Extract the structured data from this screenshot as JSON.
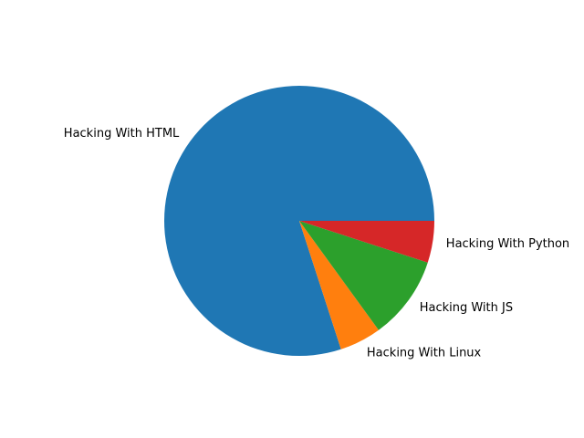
{
  "chart_data": {
    "type": "pie",
    "title": "",
    "labels": [
      "Hacking With HTML",
      "Hacking With Linux",
      "Hacking With JS",
      "Hacking With Python"
    ],
    "values": [
      80,
      5,
      10,
      5
    ],
    "colors": [
      "#1f77b4",
      "#ff7f0e",
      "#2ca02c",
      "#d62728"
    ],
    "start_angle_deg": 0,
    "direction": "counterclockwise",
    "legend": "none"
  }
}
